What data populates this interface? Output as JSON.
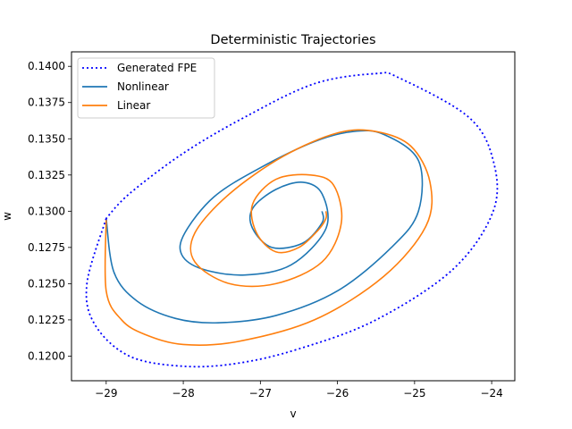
{
  "chart_data": {
    "type": "line",
    "title": "Deterministic Trajectories",
    "xlabel": "v",
    "ylabel": "w",
    "xlim": [
      -29.45,
      -23.7
    ],
    "ylim": [
      0.1183,
      0.141
    ],
    "xticks": [
      -29,
      -28,
      -27,
      -26,
      -25,
      -24
    ],
    "xtick_labels": [
      "−29",
      "−28",
      "−27",
      "−26",
      "−25",
      "−24"
    ],
    "yticks": [
      0.12,
      0.1225,
      0.125,
      0.1275,
      0.13,
      0.1325,
      0.135,
      0.1375,
      0.14
    ],
    "ytick_labels": [
      "0.1200",
      "0.1225",
      "0.1250",
      "0.1275",
      "0.1300",
      "0.1325",
      "0.1350",
      "0.1375",
      "0.1400"
    ],
    "grid": false,
    "legend_position": "top-left",
    "series": [
      {
        "name": "Generated FPE",
        "color": "#0000ff",
        "style": "dotted",
        "x": [
          -29.0,
          -29.25,
          -29.15,
          -28.7,
          -28.0,
          -27.3,
          -26.5,
          -25.5,
          -24.5,
          -23.98,
          -23.98,
          -24.3,
          -25.2,
          -25.5,
          -26.3,
          -27.2,
          -28.0,
          -28.7,
          -29.0
        ],
        "y": [
          0.1295,
          0.125,
          0.1222,
          0.12,
          0.1193,
          0.1195,
          0.1205,
          0.1225,
          0.126,
          0.13,
          0.1335,
          0.1365,
          0.1392,
          0.1395,
          0.1388,
          0.1365,
          0.134,
          0.1312,
          0.1295
        ]
      },
      {
        "name": "Nonlinear",
        "color": "#1f77b4",
        "style": "solid",
        "x": [
          -29.0,
          -28.9,
          -28.6,
          -28.1,
          -27.55,
          -26.8,
          -26.0,
          -25.3,
          -24.95,
          -24.95,
          -25.4,
          -25.8,
          -26.3,
          -27.0,
          -27.6,
          -27.98,
          -28.02,
          -27.75,
          -27.2,
          -26.6,
          -26.15,
          -26.2,
          -26.45,
          -26.8,
          -27.1,
          -27.1,
          -26.85,
          -26.45,
          -26.2,
          -26.2
        ],
        "y": [
          0.1295,
          0.1258,
          0.1238,
          0.1226,
          0.1223,
          0.1228,
          0.1245,
          0.1275,
          0.13,
          0.1335,
          0.1353,
          0.1355,
          0.1348,
          0.133,
          0.131,
          0.1285,
          0.127,
          0.126,
          0.1256,
          0.1263,
          0.1288,
          0.1312,
          0.132,
          0.1315,
          0.1302,
          0.1288,
          0.1275,
          0.1278,
          0.1292,
          0.13
        ]
      },
      {
        "name": "Linear",
        "color": "#ff7f0e",
        "style": "solid",
        "x": [
          -29.0,
          -29.0,
          -28.8,
          -28.5,
          -28.0,
          -27.3,
          -26.3,
          -25.4,
          -24.85,
          -24.8,
          -25.05,
          -25.5,
          -26.0,
          -26.7,
          -27.4,
          -27.85,
          -27.85,
          -27.4,
          -26.8,
          -26.2,
          -25.95,
          -26.05,
          -26.35,
          -26.8,
          -27.1,
          -27.05,
          -26.8,
          -26.5,
          -26.25,
          -26.15,
          -26.15
        ],
        "y": [
          0.1295,
          0.1245,
          0.1225,
          0.1215,
          0.1208,
          0.121,
          0.1225,
          0.1255,
          0.129,
          0.132,
          0.1345,
          0.1355,
          0.1354,
          0.1338,
          0.1312,
          0.1285,
          0.1265,
          0.125,
          0.125,
          0.1265,
          0.1292,
          0.1318,
          0.1325,
          0.1322,
          0.1305,
          0.1285,
          0.1272,
          0.1275,
          0.1287,
          0.1295,
          0.13
        ]
      }
    ]
  }
}
